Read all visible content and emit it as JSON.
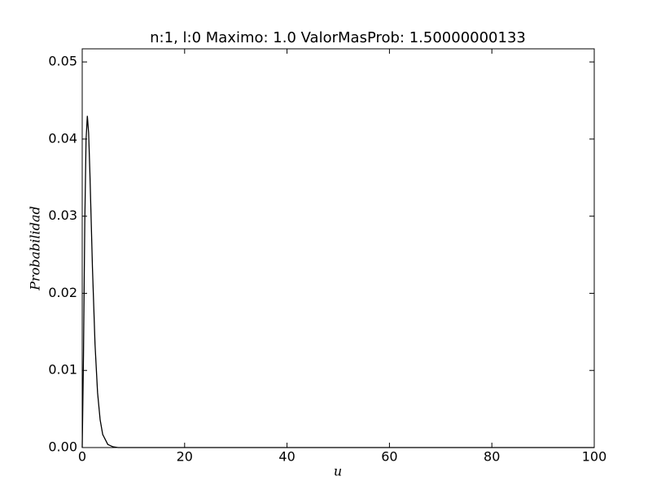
{
  "chart_data": {
    "type": "line",
    "title": "n:1, l:0  Maximo: 1.0 ValorMasProb: 1.50000000133",
    "x_label": "u",
    "y_label": "Probabilidad",
    "x": [
      0,
      0.25,
      0.5,
      0.75,
      1,
      1.25,
      1.5,
      2,
      2.5,
      3,
      3.5,
      4,
      5,
      6,
      7,
      100
    ],
    "series": [
      {
        "color": "#000000",
        "values": [
          0,
          0.012,
          0.0292,
          0.0399,
          0.043,
          0.0408,
          0.0356,
          0.0233,
          0.0134,
          0.0071,
          0.0036,
          0.0017,
          0.0004,
          0.0001,
          0,
          0
        ]
      }
    ],
    "xlim": [
      0,
      100
    ],
    "xticks": [
      0,
      20,
      40,
      60,
      80,
      100
    ],
    "ylim": [
      0,
      0.0517
    ],
    "yticks": [
      {
        "value": 0,
        "label": "0.00"
      },
      {
        "value": 0.01,
        "label": "0.01"
      },
      {
        "value": 0.02,
        "label": "0.02"
      },
      {
        "value": 0.03,
        "label": "0.03"
      },
      {
        "value": 0.04,
        "label": "0.04"
      },
      {
        "value": 0.05,
        "label": "0.05"
      }
    ],
    "grid": false
  }
}
